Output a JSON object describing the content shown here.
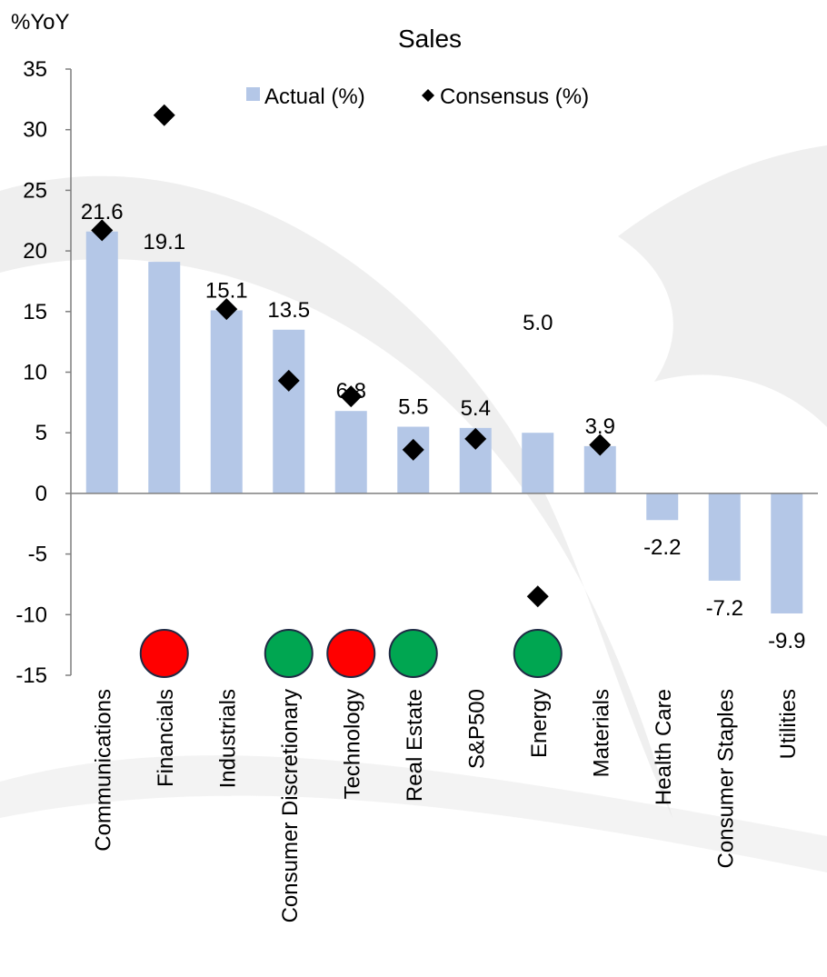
{
  "chart_data": {
    "type": "bar",
    "title": "Sales",
    "ylabel": "%YoY",
    "xlabel": "",
    "ylim": [
      -15,
      35
    ],
    "yticks": [
      35,
      30,
      25,
      20,
      15,
      10,
      5,
      0,
      -5,
      -10,
      -15
    ],
    "grid": false,
    "legend_position": "top-center",
    "categories": [
      "Communications",
      "Financials",
      "Industrials",
      "Consumer Discretionary",
      "Technology",
      "Real Estate",
      "S&P500",
      "Energy",
      "Materials",
      "Health Care",
      "Consumer Staples",
      "Utilities"
    ],
    "series": [
      {
        "name": "Actual (%)",
        "mark": "bar",
        "color": "#b4c7e7",
        "values": [
          21.6,
          19.1,
          15.1,
          13.5,
          6.8,
          5.5,
          5.4,
          5.0,
          3.9,
          -2.2,
          -7.2,
          -9.9
        ],
        "labels": [
          "21.6",
          "19.1",
          "15.1",
          "13.5",
          "6.8",
          "5.5",
          "5.4",
          "5.0",
          "3.9",
          "-2.2",
          "-7.2",
          "-9.9"
        ]
      },
      {
        "name": "Consensus (%)",
        "mark": "diamond",
        "color": "#000000",
        "values": [
          21.7,
          31.2,
          15.2,
          9.3,
          8.0,
          3.6,
          4.5,
          -8.5,
          4.0,
          null,
          null,
          null
        ]
      }
    ],
    "indicators": [
      {
        "category": "Financials",
        "status": "miss",
        "color": "#ff0000"
      },
      {
        "category": "Consumer Discretionary",
        "status": "beat",
        "color": "#00a651"
      },
      {
        "category": "Technology",
        "status": "miss",
        "color": "#ff0000"
      },
      {
        "category": "Real Estate",
        "status": "beat",
        "color": "#00a651"
      },
      {
        "category": "Energy",
        "status": "beat",
        "color": "#00a651"
      }
    ],
    "watermark_color": "#dcdcdc"
  }
}
